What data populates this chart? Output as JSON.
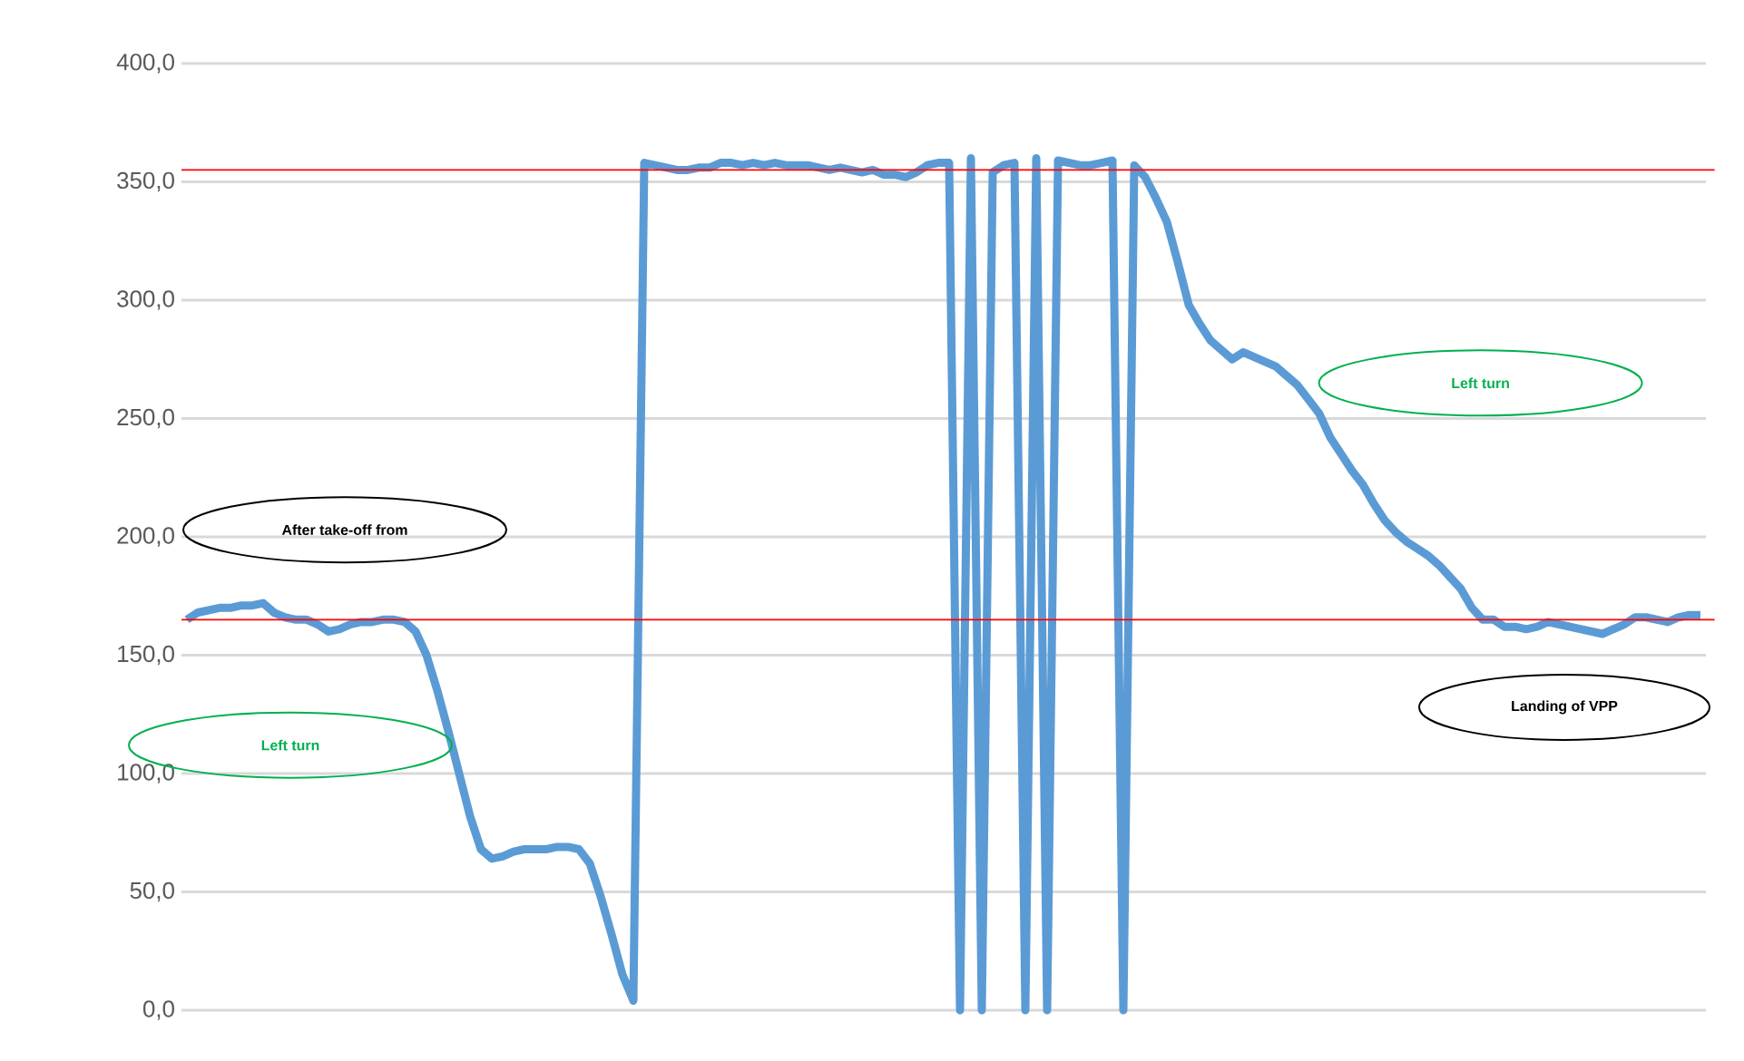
{
  "chart_data": {
    "type": "line",
    "categories": [
      null,
      null,
      null,
      null,
      null,
      null,
      null,
      null,
      null,
      null,
      null,
      null,
      null,
      null,
      null,
      null,
      null,
      null,
      null,
      null,
      null,
      null,
      null,
      null,
      null,
      null,
      null,
      null,
      null,
      null,
      null,
      null,
      null,
      null,
      null,
      null,
      null,
      null,
      null,
      null,
      null,
      null,
      null,
      null,
      null,
      null,
      null,
      null,
      null,
      null,
      null,
      null,
      null,
      null,
      null,
      null,
      null,
      null,
      null,
      null,
      null,
      null,
      null,
      null,
      null,
      null,
      null,
      null,
      null,
      null,
      null,
      null,
      null,
      null,
      null,
      null,
      null,
      null,
      null,
      null,
      null,
      null,
      null,
      null,
      null,
      null,
      null,
      null,
      null,
      null,
      null,
      null,
      null,
      null,
      null,
      null,
      null,
      null,
      null,
      null,
      null,
      null,
      null,
      null,
      null,
      null,
      null,
      null,
      null,
      null,
      null,
      null,
      null,
      null,
      null,
      null,
      null,
      null,
      null,
      null,
      null,
      null,
      null,
      null,
      null,
      null,
      null,
      null,
      null,
      null,
      null,
      null,
      null,
      null,
      null,
      null,
      null,
      null,
      null,
      null
    ],
    "series": [
      {
        "color": "#5b9bd5",
        "values": [
          165,
          168,
          169,
          170,
          170,
          171,
          171,
          172,
          168,
          166,
          165,
          165,
          163,
          160,
          161,
          163,
          164,
          164,
          165,
          165,
          164,
          160,
          150,
          135,
          118,
          100,
          82,
          68,
          64,
          65,
          67,
          68,
          68,
          68,
          69,
          69,
          68,
          62,
          48,
          32,
          15,
          4,
          358,
          357,
          356,
          355,
          355,
          356,
          356,
          358,
          358,
          357,
          358,
          357,
          358,
          357,
          357,
          357,
          356,
          355,
          356,
          355,
          354,
          355,
          353,
          353,
          352,
          354,
          357,
          358,
          358,
          0,
          360,
          0,
          354,
          357,
          358,
          0,
          360,
          0,
          359,
          358,
          357,
          357,
          358,
          359,
          0,
          357,
          352,
          343,
          333,
          316,
          298,
          290,
          283,
          279,
          275,
          278,
          276,
          274,
          272,
          268,
          264,
          258,
          252,
          242,
          235,
          228,
          222,
          214,
          207,
          202,
          198,
          195,
          192,
          188,
          183,
          178,
          170,
          165,
          165,
          162,
          162,
          161,
          162,
          164,
          163,
          162,
          161,
          160,
          159,
          161,
          163,
          166,
          166,
          165,
          164,
          166,
          167,
          167
        ]
      }
    ],
    "ylim": [
      0,
      400
    ],
    "yticks": [
      {
        "value": 0,
        "label": "0,0"
      },
      {
        "value": 50,
        "label": "50,0"
      },
      {
        "value": 100,
        "label": "100,0"
      },
      {
        "value": 150,
        "label": "150,0"
      },
      {
        "value": 200,
        "label": "200,0"
      },
      {
        "value": 250,
        "label": "250,0"
      },
      {
        "value": 300,
        "label": "300,0"
      },
      {
        "value": 350,
        "label": "350,0"
      },
      {
        "value": 400,
        "label": "400,0"
      }
    ],
    "grid": "y",
    "line_style": "solid",
    "ref_lines": [
      {
        "axis": "y",
        "value": 355,
        "color": "#ff0000"
      },
      {
        "axis": "y",
        "value": 165,
        "color": "#ff0000"
      }
    ],
    "annotations": [
      "After take-off from",
      "Left turn",
      "Left turn",
      "Landing of VPP"
    ]
  }
}
